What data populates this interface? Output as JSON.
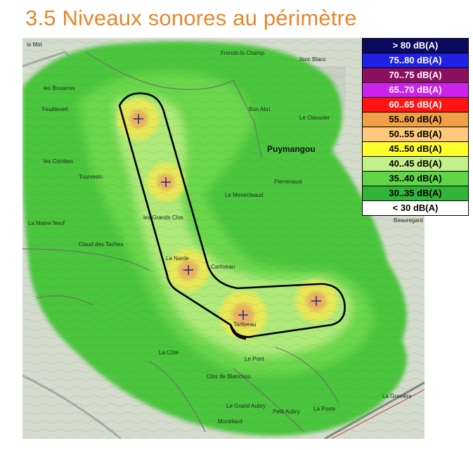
{
  "title": "3.5 Niveaux sonores au périmètre",
  "legend": [
    {
      "label": "> 80 dB(A)",
      "color": "#0a0a5e",
      "text_color": "#ffffff"
    },
    {
      "label": "75..80 dB(A)",
      "color": "#2020e6",
      "text_color": "#ffffff"
    },
    {
      "label": "70..75 dB(A)",
      "color": "#8b1060",
      "text_color": "#ffffff"
    },
    {
      "label": "65..70 dB(A)",
      "color": "#cc22ee",
      "text_color": "#ffffff"
    },
    {
      "label": "60..65 dB(A)",
      "color": "#ff1414",
      "text_color": "#ffffff"
    },
    {
      "label": "55..60 dB(A)",
      "color": "#f0a048",
      "text_color": "#000000"
    },
    {
      "label": "50..55 dB(A)",
      "color": "#ffc87a",
      "text_color": "#000000"
    },
    {
      "label": "45..50 dB(A)",
      "color": "#ffff2e",
      "text_color": "#000000"
    },
    {
      "label": "40..45 dB(A)",
      "color": "#c2f08c",
      "text_color": "#000000"
    },
    {
      "label": "35..40 dB(A)",
      "color": "#5fd648",
      "text_color": "#000000"
    },
    {
      "label": "30..35 dB(A)",
      "color": "#32b43a",
      "text_color": "#000000"
    },
    {
      "label": "< 30 dB(A)",
      "color": "#ffffff",
      "text_color": "#000000"
    }
  ],
  "places": [
    {
      "label": "la Mot"
    },
    {
      "label": "Frends-Is-Champ"
    },
    {
      "label": "Jonc Blanc"
    },
    {
      "label": "les Bouarres"
    },
    {
      "label": "Feuillevert"
    },
    {
      "label": "Bon Abri"
    },
    {
      "label": "Le Clavurier"
    },
    {
      "label": "Puymangou"
    },
    {
      "label": "les Combes"
    },
    {
      "label": "Pierrenaud"
    },
    {
      "label": "Tourvesin"
    },
    {
      "label": "Le Menecleaud"
    },
    {
      "label": "Beauregard"
    },
    {
      "label": "les Grands Clos"
    },
    {
      "label": "La Maine Neuf"
    },
    {
      "label": "Claud des Taches"
    },
    {
      "label": "La Narde"
    },
    {
      "label": "Cartiveau"
    },
    {
      "label": "Tartiveau"
    },
    {
      "label": "La Côte"
    },
    {
      "label": "Le Pont"
    },
    {
      "label": "Clos de Blanchou"
    },
    {
      "label": "Le Grand Aubry"
    },
    {
      "label": "Montillard"
    },
    {
      "label": "Petit Aubry"
    },
    {
      "label": "La Poste"
    },
    {
      "label": "La Gravière"
    }
  ],
  "turbines": [
    {
      "name": "T1",
      "symbol": "+"
    },
    {
      "name": "T2",
      "symbol": "+"
    },
    {
      "name": "T3",
      "symbol": "+"
    },
    {
      "name": "T4",
      "symbol": "+"
    },
    {
      "name": "T5",
      "symbol": "+"
    }
  ],
  "zone_colors": {
    "outer": "#4cc53e",
    "mid": "#6ad64c",
    "inner": "#aee97a",
    "yellow": "#e8e858",
    "orange": "#e8b060",
    "map_base": "#d5dccd",
    "perimeter": "#000000"
  }
}
